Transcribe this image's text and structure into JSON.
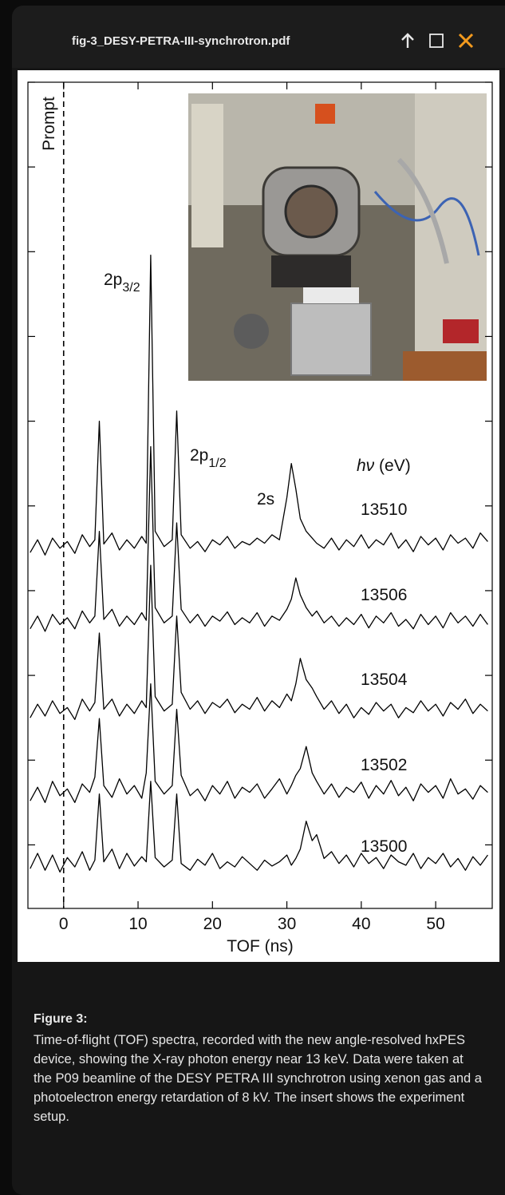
{
  "header": {
    "filename": "fig-3_DESY-PETRA-III-synchrotron.pdf"
  },
  "chart_data": {
    "type": "line",
    "color": "#000000",
    "x": [
      -4.5,
      -3.5,
      -2.5,
      -1.5,
      -0.5,
      0.5,
      1.5,
      2.5,
      3.5,
      4.2,
      4.8,
      5.4,
      6.5,
      7.5,
      8.5,
      9.5,
      10.5,
      11.1,
      11.7,
      12.3,
      13.5,
      14.6,
      15.2,
      15.8,
      17,
      18,
      19,
      20,
      21,
      22,
      23,
      24,
      25,
      26,
      27,
      28,
      29,
      30,
      30.6,
      31.2,
      31.8,
      32.6,
      33.4,
      34,
      35,
      36,
      37,
      38,
      39,
      40,
      41,
      42,
      43,
      44,
      45,
      46,
      47,
      48,
      49,
      50,
      51,
      52,
      53,
      54,
      55,
      56,
      57
    ],
    "xlim": [
      -4.8,
      57.6
    ],
    "xticks": [
      0,
      10,
      20,
      30,
      40,
      50
    ],
    "xlabel": "TOF (ns)",
    "ylim": [
      0.25,
      10
    ],
    "yticks": [
      1,
      2,
      3,
      4,
      5,
      6,
      7,
      8,
      9,
      10
    ],
    "prompt": {
      "x": 0,
      "label": "Prompt"
    },
    "energy_label": {
      "symbol": "hν",
      "unit": "(eV)"
    },
    "annotations": [
      {
        "text": "2p",
        "sub": "3/2"
      },
      {
        "text": "2p",
        "sub": "1/2"
      },
      {
        "text": "2s"
      }
    ],
    "series": [
      {
        "name": "13510",
        "values": [
          4.45,
          4.6,
          4.42,
          4.62,
          4.5,
          4.58,
          4.44,
          4.66,
          4.52,
          4.6,
          6.0,
          4.55,
          4.68,
          4.48,
          4.6,
          4.5,
          4.64,
          4.56,
          7.96,
          4.7,
          4.52,
          4.6,
          6.12,
          4.66,
          4.5,
          4.58,
          4.46,
          4.6,
          4.54,
          4.64,
          4.5,
          4.58,
          4.54,
          4.62,
          4.56,
          4.66,
          4.6,
          5.1,
          5.5,
          5.2,
          4.85,
          4.7,
          4.62,
          4.56,
          4.5,
          4.62,
          4.48,
          4.6,
          4.52,
          4.66,
          4.5,
          4.6,
          4.54,
          4.68,
          4.5,
          4.6,
          4.46,
          4.64,
          4.54,
          4.62,
          4.48,
          4.66,
          4.56,
          4.62,
          4.5,
          4.68,
          4.58
        ]
      },
      {
        "name": "13506",
        "values": [
          3.55,
          3.7,
          3.52,
          3.72,
          3.6,
          3.68,
          3.55,
          3.76,
          3.62,
          3.7,
          4.7,
          3.66,
          3.78,
          3.58,
          3.7,
          3.6,
          3.74,
          3.65,
          5.7,
          3.8,
          3.62,
          3.7,
          4.8,
          3.78,
          3.62,
          3.72,
          3.58,
          3.7,
          3.64,
          3.75,
          3.6,
          3.68,
          3.62,
          3.74,
          3.58,
          3.7,
          3.65,
          3.78,
          3.9,
          4.15,
          3.95,
          3.8,
          3.7,
          3.76,
          3.62,
          3.7,
          3.58,
          3.68,
          3.6,
          3.72,
          3.56,
          3.7,
          3.62,
          3.74,
          3.58,
          3.66,
          3.55,
          3.72,
          3.6,
          3.7,
          3.56,
          3.74,
          3.62,
          3.7,
          3.58,
          3.72,
          3.6
        ]
      },
      {
        "name": "13504",
        "values": [
          2.5,
          2.66,
          2.52,
          2.7,
          2.55,
          2.62,
          2.48,
          2.72,
          2.58,
          2.68,
          3.5,
          2.6,
          2.72,
          2.52,
          2.66,
          2.55,
          2.7,
          2.62,
          4.3,
          2.75,
          2.58,
          2.66,
          3.7,
          2.8,
          2.6,
          2.7,
          2.55,
          2.68,
          2.62,
          2.72,
          2.56,
          2.66,
          2.6,
          2.74,
          2.58,
          2.7,
          2.62,
          2.78,
          2.7,
          2.9,
          3.2,
          2.95,
          2.85,
          2.75,
          2.6,
          2.7,
          2.55,
          2.66,
          2.5,
          2.62,
          2.54,
          2.68,
          2.58,
          2.66,
          2.5,
          2.62,
          2.56,
          2.7,
          2.58,
          2.66,
          2.52,
          2.68,
          2.6,
          2.72,
          2.55,
          2.66,
          2.58
        ]
      },
      {
        "name": "13502",
        "values": [
          1.52,
          1.68,
          1.5,
          1.75,
          1.58,
          1.66,
          1.5,
          1.72,
          1.62,
          1.8,
          2.49,
          1.7,
          1.56,
          1.78,
          1.6,
          1.7,
          1.55,
          1.85,
          2.9,
          1.75,
          1.6,
          1.7,
          2.6,
          1.82,
          1.58,
          1.66,
          1.52,
          1.7,
          1.6,
          1.75,
          1.55,
          1.68,
          1.62,
          1.72,
          1.55,
          1.66,
          1.78,
          1.6,
          1.7,
          1.82,
          1.9,
          2.16,
          1.85,
          1.75,
          1.6,
          1.72,
          1.56,
          1.68,
          1.62,
          1.74,
          1.55,
          1.7,
          1.6,
          1.76,
          1.58,
          1.68,
          1.52,
          1.72,
          1.62,
          1.7,
          1.55,
          1.78,
          1.6,
          1.66,
          1.54,
          1.7,
          1.62
        ]
      },
      {
        "name": "13500",
        "values": [
          0.72,
          0.9,
          0.7,
          0.88,
          0.68,
          0.85,
          0.74,
          0.92,
          0.7,
          0.82,
          1.6,
          0.8,
          0.95,
          0.72,
          0.9,
          0.75,
          0.86,
          0.8,
          1.75,
          0.85,
          0.74,
          0.82,
          1.6,
          0.78,
          0.7,
          0.83,
          0.76,
          0.9,
          0.72,
          0.8,
          0.74,
          0.86,
          0.78,
          0.7,
          0.82,
          0.75,
          0.8,
          0.88,
          0.76,
          0.84,
          0.95,
          1.28,
          1.05,
          1.12,
          0.84,
          0.92,
          0.78,
          0.88,
          0.74,
          0.9,
          0.78,
          0.85,
          0.72,
          0.88,
          0.8,
          0.76,
          0.9,
          0.72,
          0.85,
          0.78,
          0.9,
          0.74,
          0.84,
          0.7,
          0.86,
          0.76,
          0.88
        ]
      }
    ]
  },
  "caption": {
    "title": "Figure 3:",
    "text": "Time-of-flight (TOF) spectra, recorded with the new angle-resolved hxPES device, showing the X-ray photon energy near 13 keV. Data were taken at the P09 beamline of the DESY PETRA III synchrotron using xenon gas and a photoelectron energy retardation of 8 kV. The insert shows the experiment setup."
  }
}
